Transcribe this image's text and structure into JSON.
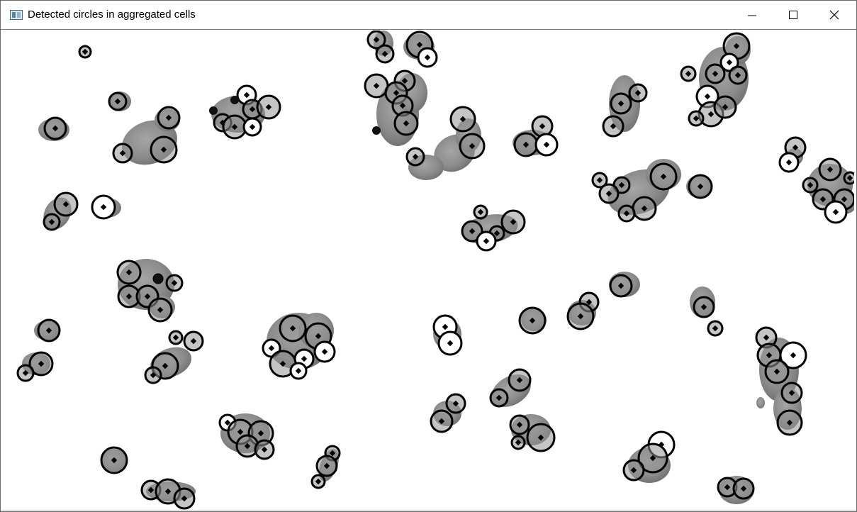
{
  "window": {
    "title": "Detected circles in aggregated cells",
    "icon": "opencv-window-icon",
    "controls": {
      "minimize_icon": "minimize-icon",
      "maximize_icon": "maximize-icon",
      "close_icon": "close-icon"
    }
  },
  "image": {
    "content": "binary-thresholded cell image with detected circle overlays",
    "blob_color": "#8a8a8a",
    "circle_stroke_color": "#000000",
    "center_marker_color": "#000000"
  },
  "colors": {
    "titlebar_bg": "#ffffff",
    "border": "#6b6b6b",
    "canvas_bg": "#ffffff"
  }
}
